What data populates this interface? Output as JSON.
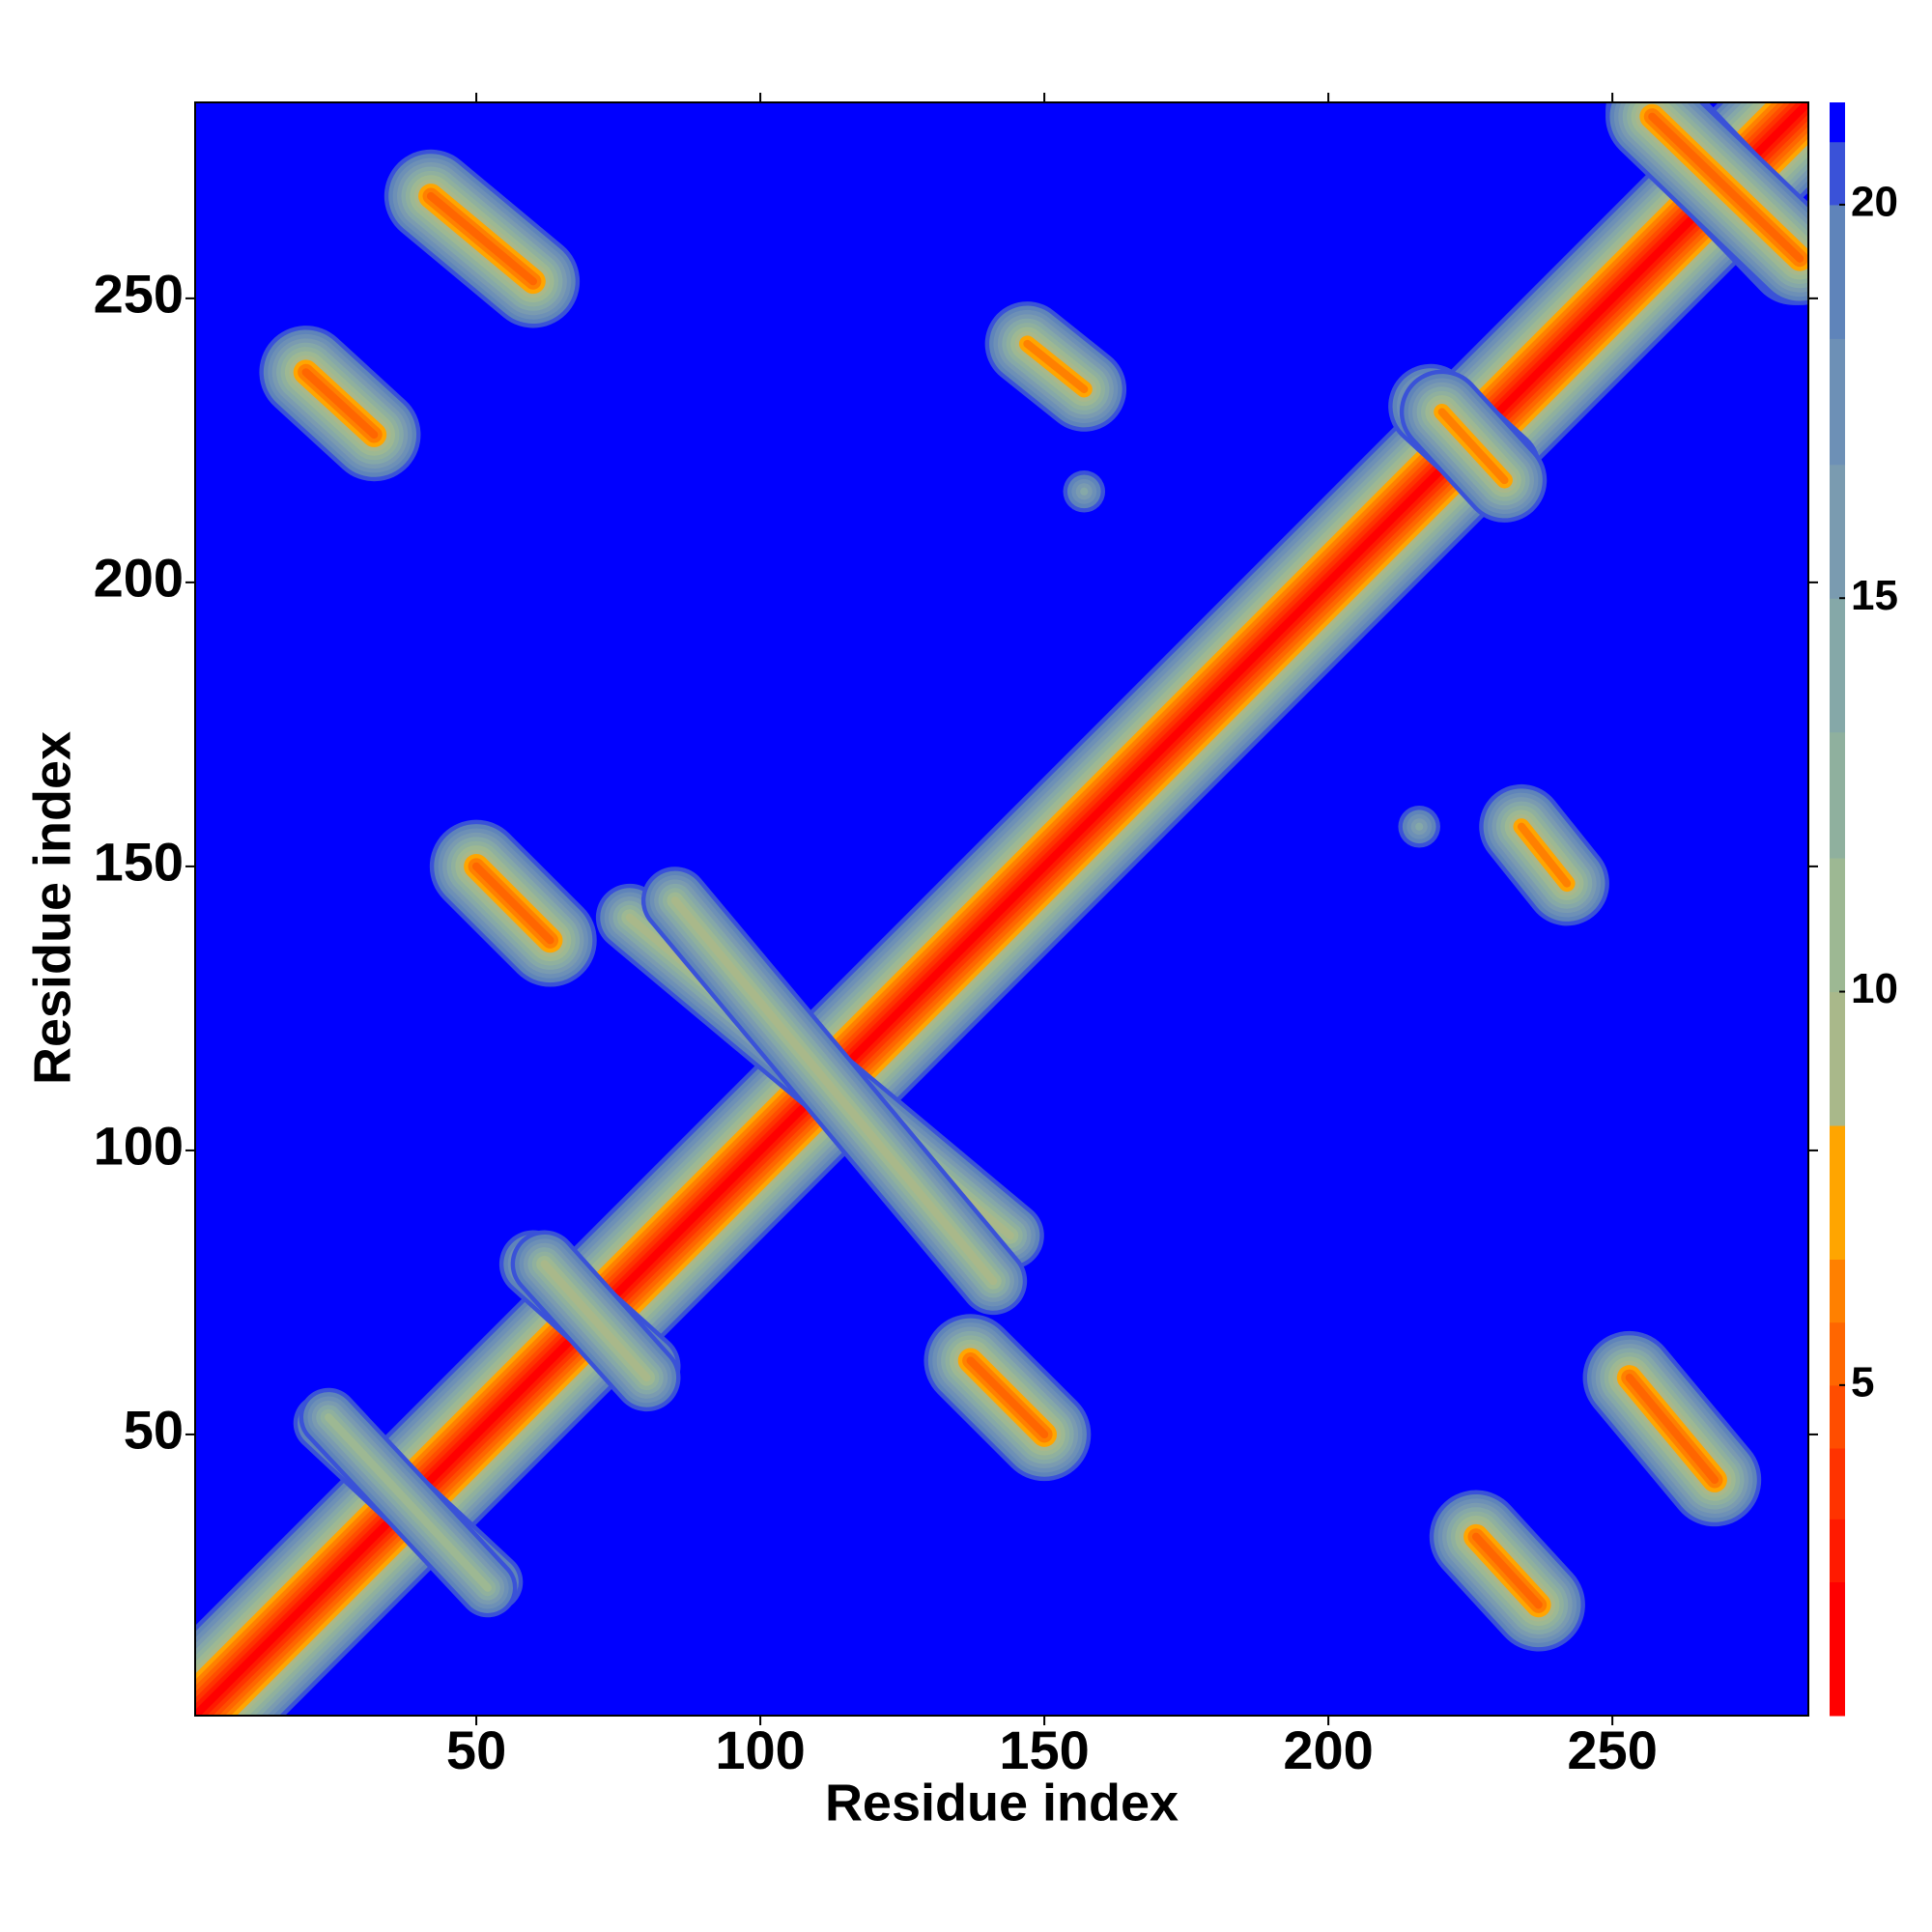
{
  "chart_data": {
    "type": "contact_map",
    "xlabel": "Residue index",
    "ylabel": "Residue index",
    "xlim": [
      0.5,
      284.5
    ],
    "ylim": [
      0.5,
      284.5
    ],
    "xticks": [
      50,
      100,
      150,
      200,
      250
    ],
    "yticks": [
      50,
      100,
      150,
      200,
      250
    ],
    "symmetric": true,
    "colorbar": {
      "levels": [
        0.8,
        2.5,
        3.3,
        4.2,
        5.0,
        5.8,
        6.6,
        8.3,
        10.0,
        11.7,
        13.3,
        15.0,
        16.7,
        18.3,
        20.0,
        20.8,
        21.3
      ],
      "colors": [
        "#ff0000",
        "#ff1a00",
        "#ff3300",
        "#ff4d00",
        "#ff6600",
        "#ff8000",
        "#ffa500",
        "#a9b88a",
        "#9db893",
        "#8fb09e",
        "#85a8a8",
        "#7a9bb0",
        "#6d90b6",
        "#5f84ba",
        "#3a52d8",
        "#0000ff"
      ],
      "ticks": [
        5,
        10,
        15,
        20
      ]
    },
    "contacts": [
      {
        "from": [
          1,
          1
        ],
        "to": [
          284,
          284
        ],
        "value": 2.0
      },
      {
        "from": [
          20,
          237
        ],
        "to": [
          32,
          226
        ],
        "value": 5.5
      },
      {
        "from": [
          42,
          268
        ],
        "to": [
          60,
          253
        ],
        "value": 5.5
      },
      {
        "from": [
          50,
          150
        ],
        "to": [
          63,
          137
        ],
        "value": 5.5
      },
      {
        "from": [
          147,
          242
        ],
        "to": [
          157,
          234
        ],
        "value": 6.0
      },
      {
        "from": [
          77,
          141
        ],
        "to": [
          144,
          85
        ],
        "value": 9.5
      },
      {
        "from": [
          257,
          283
        ],
        "to": [
          282,
          257
        ],
        "value": 5.5
      },
      {
        "from": [
          218,
          231
        ],
        "to": [
          230,
          220
        ],
        "value": 6.0
      },
      {
        "from": [
          23,
          52
        ],
        "to": [
          53,
          24
        ],
        "value": 10.5
      },
      {
        "from": [
          157,
          216
        ],
        "to": [
          157,
          216
        ],
        "value": 14.0
      },
      {
        "from": [
          60,
          80
        ],
        "to": [
          80,
          62
        ],
        "value": 9.0
      }
    ]
  }
}
